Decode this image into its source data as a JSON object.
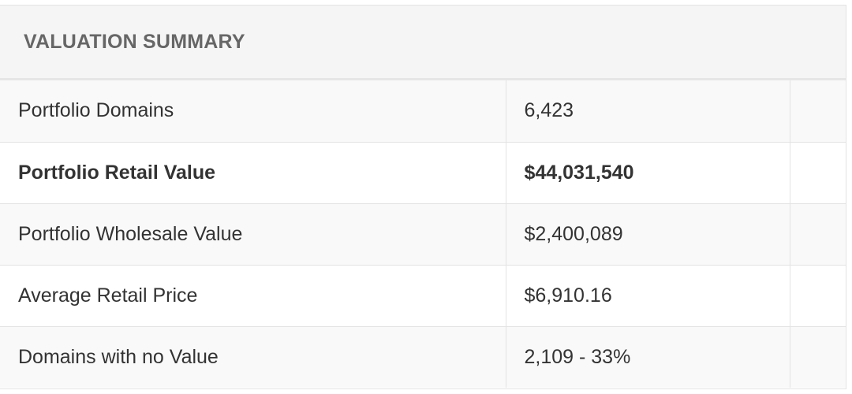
{
  "panel": {
    "title": "VALUATION SUMMARY"
  },
  "rows": [
    {
      "label": "Portfolio Domains",
      "value": "6,423",
      "bold": false
    },
    {
      "label": "Portfolio Retail Value",
      "value": "$44,031,540",
      "bold": true
    },
    {
      "label": "Portfolio Wholesale Value",
      "value": "$2,400,089",
      "bold": false
    },
    {
      "label": "Average Retail Price",
      "value": "$6,910.16",
      "bold": false
    },
    {
      "label": "Domains with no Value",
      "value": "2,109 - 33%",
      "bold": false
    }
  ]
}
